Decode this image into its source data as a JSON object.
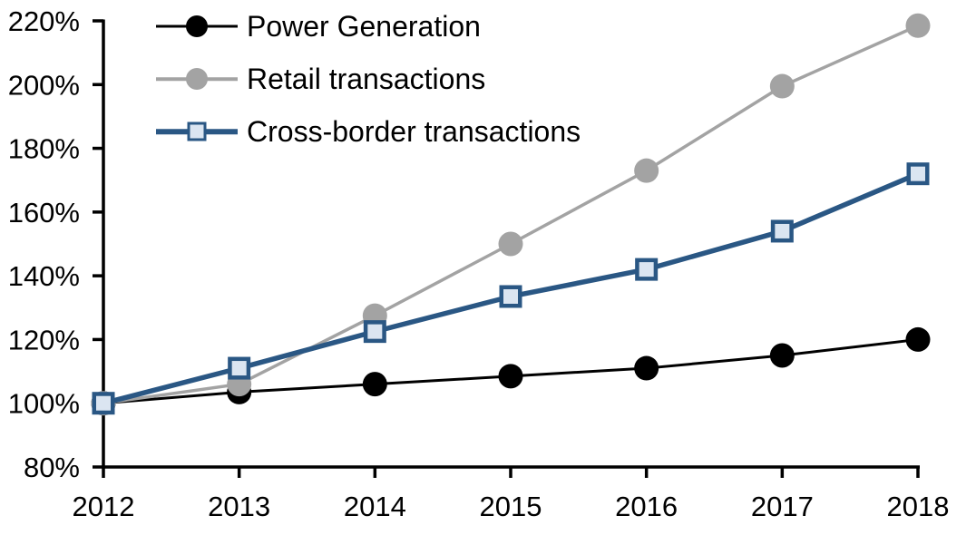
{
  "chart_data": {
    "type": "line",
    "title": "",
    "xlabel": "",
    "ylabel": "",
    "x": [
      "2012",
      "2013",
      "2014",
      "2015",
      "2016",
      "2017",
      "2018"
    ],
    "x_ticks": [
      "2012",
      "2013",
      "2014",
      "2015",
      "2016",
      "2017",
      "2018"
    ],
    "y_ticks": [
      "80%",
      "100%",
      "120%",
      "140%",
      "160%",
      "180%",
      "200%",
      "220%"
    ],
    "ylim": [
      80,
      220
    ],
    "grid": false,
    "legend_position": "top-left",
    "axis_color": "#000000",
    "background_color": "#ffffff",
    "series": [
      {
        "name": "Power Generation",
        "color": "#000000",
        "marker": "circle",
        "marker_fill": "#000000",
        "line_width": 3,
        "values": [
          100,
          103.5,
          106,
          108.5,
          111,
          115,
          120
        ]
      },
      {
        "name": "Retail transactions",
        "color": "#a3a3a3",
        "marker": "circle",
        "marker_fill": "#a3a3a3",
        "line_width": 3.5,
        "values": [
          100,
          106,
          127.5,
          150,
          173,
          199.5,
          218.5
        ]
      },
      {
        "name": "Cross-border transactions",
        "color": "#2a5784",
        "marker": "square",
        "marker_fill": "#dbe5f1",
        "line_width": 5.5,
        "values": [
          100,
          111,
          122.5,
          133.5,
          142,
          154,
          172
        ]
      }
    ]
  }
}
